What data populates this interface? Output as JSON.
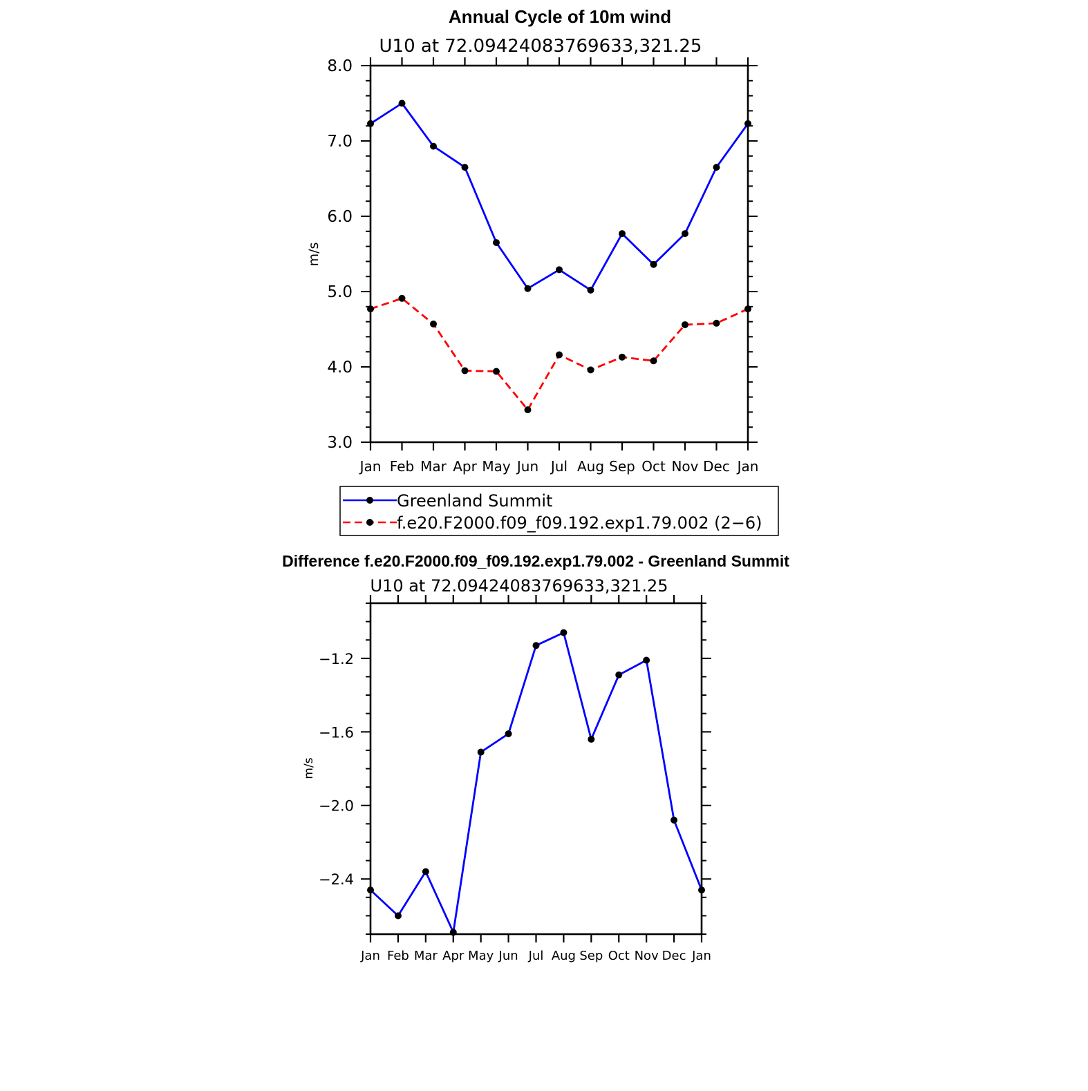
{
  "chart_data": [
    {
      "type": "line",
      "title": "Annual Cycle of 10m wind",
      "subtitle": "U10 at 72.09424083769633,321.25",
      "xlabel": "",
      "ylabel": "m/s",
      "categories": [
        "Jan",
        "Feb",
        "Mar",
        "Apr",
        "May",
        "Jun",
        "Jul",
        "Aug",
        "Sep",
        "Oct",
        "Nov",
        "Dec",
        "Jan"
      ],
      "ylim": [
        3.0,
        8.0
      ],
      "yticks": [
        3.0,
        4.0,
        5.0,
        6.0,
        7.0,
        8.0
      ],
      "ytick_labels": [
        "3.0",
        "4.0",
        "5.0",
        "6.0",
        "7.0",
        "8.0"
      ],
      "grid": false,
      "legend_position": "below",
      "series": [
        {
          "name": "Greenland Summit",
          "color": "#0000ff",
          "dash": "solid",
          "values": [
            7.23,
            7.5,
            6.93,
            6.65,
            5.65,
            5.04,
            5.29,
            5.02,
            5.77,
            5.36,
            5.77,
            6.65,
            7.23
          ]
        },
        {
          "name": "f.e20.F2000.f09_f09.192.exp1.79.002 (2−6)",
          "color": "#ff0000",
          "dash": "dashed",
          "values": [
            4.77,
            4.91,
            4.57,
            3.95,
            3.94,
            3.43,
            4.16,
            3.96,
            4.13,
            4.08,
            4.56,
            4.58,
            4.77
          ]
        }
      ]
    },
    {
      "type": "line",
      "title": "Difference f.e20.F2000.f09_f09.192.exp1.79.002 - Greenland Summit",
      "subtitle": "U10 at 72.09424083769633,321.25",
      "xlabel": "",
      "ylabel": "m/s",
      "categories": [
        "Jan",
        "Feb",
        "Mar",
        "Apr",
        "May",
        "Jun",
        "Jul",
        "Aug",
        "Sep",
        "Oct",
        "Nov",
        "Dec",
        "Jan"
      ],
      "ylim": [
        -2.7,
        -0.9
      ],
      "yticks": [
        -2.4,
        -2.0,
        -1.6,
        -1.2
      ],
      "ytick_labels": [
        "−2.4",
        "−2.0",
        "−1.6",
        "−1.2"
      ],
      "grid": false,
      "series": [
        {
          "name": "Difference",
          "color": "#0000ff",
          "dash": "solid",
          "values": [
            -2.46,
            -2.6,
            -2.36,
            -2.69,
            -1.71,
            -1.61,
            -1.13,
            -1.06,
            -1.64,
            -1.29,
            -1.21,
            -2.08,
            -2.46
          ]
        }
      ]
    }
  ]
}
